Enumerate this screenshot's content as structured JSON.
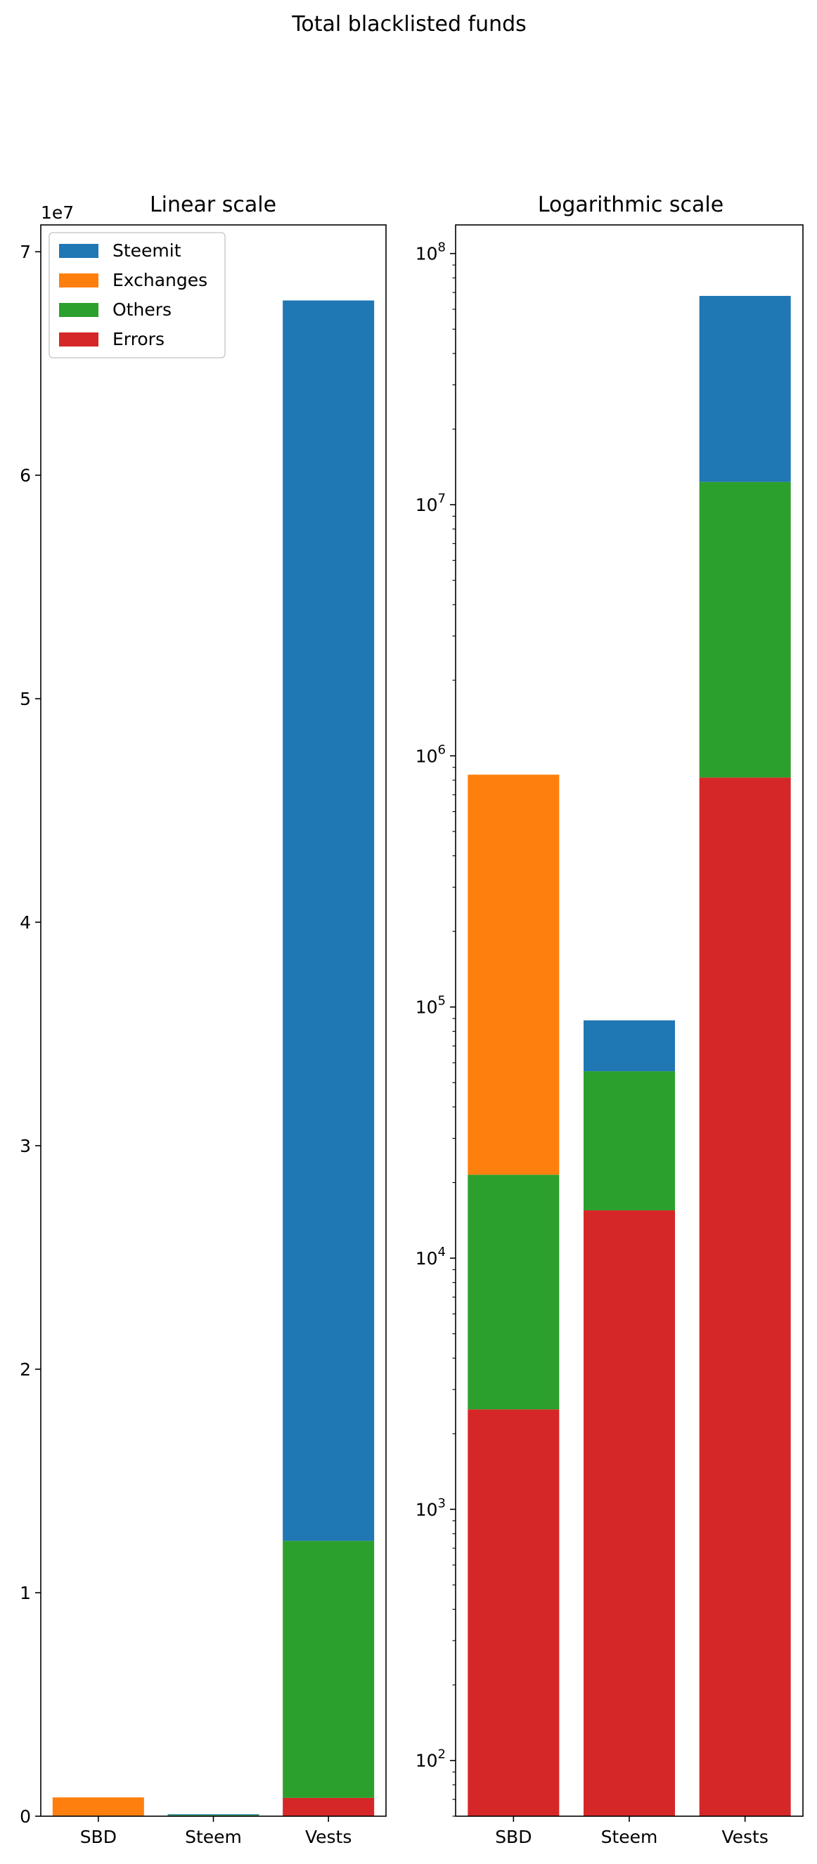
{
  "figure_title": "Total blacklisted funds",
  "chart_data": [
    {
      "type": "bar",
      "stacked": true,
      "title": "Linear scale",
      "xlabel": "",
      "ylabel": "",
      "categories": [
        "SBD",
        "Steem",
        "Vests"
      ],
      "yscale": "linear",
      "ylim": [
        0,
        71200000
      ],
      "yticks": [
        0,
        10000000,
        20000000,
        30000000,
        40000000,
        50000000,
        60000000,
        70000000
      ],
      "ytick_labels": [
        "0",
        "1",
        "2",
        "3",
        "4",
        "5",
        "6",
        "7"
      ],
      "offset_label": "1e7",
      "legend": {
        "placement": "upper-left",
        "entries": [
          "Steemit",
          "Exchanges",
          "Others",
          "Errors"
        ]
      },
      "series": [
        {
          "name": "Errors",
          "color": "#d62728",
          "values": [
            2500,
            15500,
            820000
          ]
        },
        {
          "name": "Others",
          "color": "#2ca02c",
          "values": [
            19000,
            40000,
            11500000
          ]
        },
        {
          "name": "Exchanges",
          "color": "#ff7f0e",
          "values": [
            820000,
            0,
            0
          ]
        },
        {
          "name": "Steemit",
          "color": "#1f77b4",
          "values": [
            0,
            33000,
            55500000
          ]
        }
      ]
    },
    {
      "type": "bar",
      "stacked": true,
      "title": "Logarithmic scale",
      "xlabel": "",
      "ylabel": "",
      "categories": [
        "SBD",
        "Steem",
        "Vests"
      ],
      "yscale": "log",
      "ylim": [
        60,
        130000000
      ],
      "yticks": [
        100,
        1000,
        10000,
        100000,
        1000000,
        10000000,
        100000000
      ],
      "ytick_labels": [
        "10",
        "10",
        "10",
        "10",
        "10",
        "10",
        "10"
      ],
      "ytick_exponents": [
        "2",
        "3",
        "4",
        "5",
        "6",
        "7",
        "8"
      ],
      "series": [
        {
          "name": "Errors",
          "color": "#d62728",
          "values": [
            2500,
            15500,
            820000
          ]
        },
        {
          "name": "Others",
          "color": "#2ca02c",
          "values": [
            19000,
            40000,
            11500000
          ]
        },
        {
          "name": "Exchanges",
          "color": "#ff7f0e",
          "values": [
            820000,
            0,
            0
          ]
        },
        {
          "name": "Steemit",
          "color": "#1f77b4",
          "values": [
            0,
            33000,
            55500000
          ]
        }
      ]
    }
  ]
}
